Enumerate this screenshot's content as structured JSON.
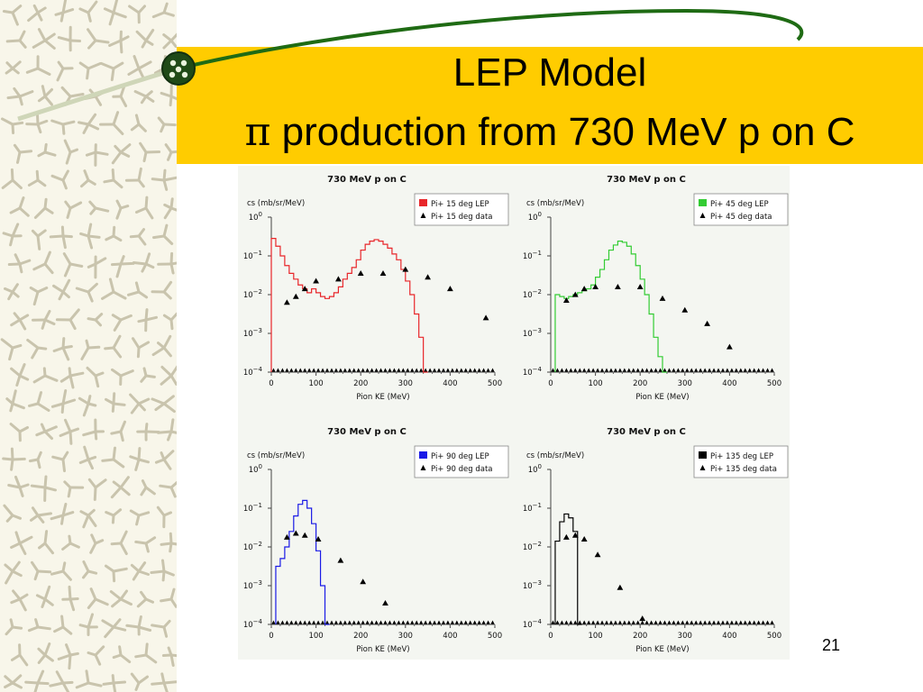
{
  "slide": {
    "title_line1": "LEP Model",
    "title_pi": "π",
    "title_line2": " production from 730 MeV p on C",
    "slide_number": "21",
    "colors": {
      "banner": "#ffcc00",
      "swoosh": "#1f6b14",
      "strip": "#f8f6ea"
    }
  },
  "chart_data": [
    {
      "type": "line",
      "title": "730 MeV p on C",
      "ylabel": "cs (mb/sr/MeV)",
      "xlabel": "Pion KE (MeV)",
      "xlim": [
        0,
        500
      ],
      "ylim_log10": [
        -4,
        0
      ],
      "y_scale": "log",
      "x_ticks": [
        0,
        100,
        200,
        300,
        400,
        500
      ],
      "y_ticks": [
        "10^0",
        "10^-1",
        "10^-2",
        "10^-3",
        "10^-4"
      ],
      "legend_position": "top-right",
      "series": [
        {
          "name": "Pi+ 15 deg LEP",
          "style": "histogram",
          "color": "#e8262a",
          "x": [
            0,
            10,
            20,
            30,
            40,
            50,
            60,
            70,
            80,
            90,
            100,
            110,
            120,
            130,
            140,
            150,
            160,
            170,
            180,
            190,
            200,
            210,
            220,
            230,
            240,
            250,
            260,
            270,
            280,
            290,
            300,
            310,
            320,
            330,
            340
          ],
          "y_log10": [
            -0.55,
            -0.75,
            -1.0,
            -1.25,
            -1.45,
            -1.6,
            -1.75,
            -1.85,
            -1.95,
            -1.85,
            -1.95,
            -2.05,
            -2.1,
            -2.05,
            -1.95,
            -1.8,
            -1.6,
            -1.45,
            -1.3,
            -1.1,
            -0.85,
            -0.7,
            -0.62,
            -0.58,
            -0.62,
            -0.7,
            -0.8,
            -0.95,
            -1.1,
            -1.35,
            -1.65,
            -2.0,
            -2.5,
            -3.1,
            -4.0
          ]
        },
        {
          "name": "Pi+ 15 deg data",
          "style": "markers",
          "color": "#000000",
          "x": [
            35,
            55,
            75,
            100,
            150,
            200,
            250,
            300,
            350,
            400,
            480
          ],
          "y_log10": [
            -2.2,
            -2.05,
            -1.85,
            -1.65,
            -1.6,
            -1.45,
            -1.45,
            -1.35,
            -1.55,
            -1.85,
            -2.6
          ]
        }
      ]
    },
    {
      "type": "line",
      "title": "730 MeV p on C",
      "ylabel": "cs (mb/sr/MeV)",
      "xlabel": "Pion KE (MeV)",
      "xlim": [
        0,
        500
      ],
      "ylim_log10": [
        -4,
        0
      ],
      "y_scale": "log",
      "x_ticks": [
        0,
        100,
        200,
        300,
        400,
        500
      ],
      "y_ticks": [
        "10^0",
        "10^-1",
        "10^-2",
        "10^-3",
        "10^-4"
      ],
      "legend_position": "top-right",
      "series": [
        {
          "name": "Pi+ 45 deg LEP",
          "style": "histogram",
          "color": "#33cc33",
          "x": [
            10,
            20,
            30,
            40,
            50,
            60,
            70,
            80,
            90,
            100,
            110,
            120,
            130,
            140,
            150,
            160,
            170,
            180,
            190,
            200,
            210,
            220,
            230,
            240,
            250
          ],
          "y_log10": [
            -2.0,
            -2.05,
            -2.1,
            -2.05,
            -2.0,
            -1.95,
            -1.9,
            -1.85,
            -1.75,
            -1.55,
            -1.35,
            -1.1,
            -0.85,
            -0.72,
            -0.62,
            -0.65,
            -0.75,
            -0.95,
            -1.25,
            -1.6,
            -2.0,
            -2.5,
            -3.1,
            -3.6,
            -4.0
          ]
        },
        {
          "name": "Pi+ 45 deg data",
          "style": "markers",
          "color": "#000000",
          "x": [
            35,
            55,
            75,
            100,
            150,
            200,
            250,
            300,
            350,
            400
          ],
          "y_log10": [
            -2.15,
            -2.0,
            -1.85,
            -1.8,
            -1.8,
            -1.8,
            -2.1,
            -2.4,
            -2.75,
            -3.35
          ]
        }
      ]
    },
    {
      "type": "line",
      "title": "730 MeV p on C",
      "ylabel": "cs (mb/sr/MeV)",
      "xlabel": "Pion KE (MeV)",
      "xlim": [
        0,
        500
      ],
      "ylim_log10": [
        -4,
        0
      ],
      "y_scale": "log",
      "x_ticks": [
        0,
        100,
        200,
        300,
        400,
        500
      ],
      "y_ticks": [
        "10^0",
        "10^-1",
        "10^-2",
        "10^-3",
        "10^-4"
      ],
      "legend_position": "top-right",
      "series": [
        {
          "name": "Pi+ 90 deg LEP",
          "style": "histogram",
          "color": "#1a1ae6",
          "x": [
            10,
            20,
            30,
            40,
            50,
            60,
            70,
            80,
            90,
            100,
            110,
            120
          ],
          "y_log10": [
            -2.5,
            -2.3,
            -2.0,
            -1.6,
            -1.2,
            -0.9,
            -0.8,
            -1.0,
            -1.4,
            -2.1,
            -3.0,
            -4.0
          ]
        },
        {
          "name": "Pi+ 90 deg data",
          "style": "markers",
          "color": "#000000",
          "x": [
            35,
            55,
            75,
            105,
            155,
            205,
            255
          ],
          "y_log10": [
            -1.75,
            -1.65,
            -1.7,
            -1.8,
            -2.35,
            -2.9,
            -3.45
          ]
        }
      ]
    },
    {
      "type": "line",
      "title": "730 MeV p on C",
      "ylabel": "cs (mb/sr/MeV)",
      "xlabel": "Pion KE (MeV)",
      "xlim": [
        0,
        500
      ],
      "ylim_log10": [
        -4,
        0
      ],
      "y_scale": "log",
      "x_ticks": [
        0,
        100,
        200,
        300,
        400,
        500
      ],
      "y_ticks": [
        "10^0",
        "10^-1",
        "10^-2",
        "10^-3",
        "10^-4"
      ],
      "legend_position": "top-right",
      "series": [
        {
          "name": "Pi+ 135 deg LEP",
          "style": "histogram",
          "color": "#000000",
          "x": [
            10,
            20,
            30,
            40,
            50,
            60
          ],
          "y_log10": [
            -1.85,
            -1.35,
            -1.15,
            -1.25,
            -1.6,
            -4.0
          ]
        },
        {
          "name": "Pi+ 135 deg data",
          "style": "markers",
          "color": "#000000",
          "x": [
            35,
            55,
            75,
            105,
            155,
            205
          ],
          "y_log10": [
            -1.75,
            -1.7,
            -1.8,
            -2.2,
            -3.05,
            -3.85
          ]
        }
      ]
    }
  ]
}
